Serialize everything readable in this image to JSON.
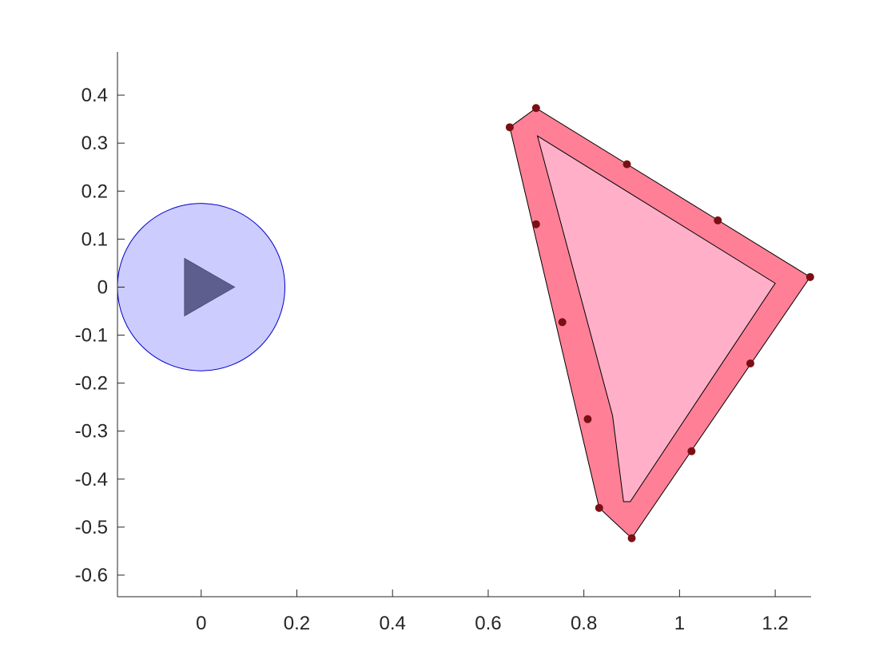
{
  "chart_data": {
    "type": "scatter",
    "title": "",
    "xlabel": "",
    "ylabel": "",
    "xlim": [
      -0.175,
      1.275
    ],
    "ylim": [
      -0.645,
      0.49
    ],
    "grid": false,
    "xticks": [
      0,
      0.2,
      0.4,
      0.6,
      0.8,
      1,
      1.2
    ],
    "xtick_labels": [
      "0",
      "0.2",
      "0.4",
      "0.6",
      "0.8",
      "1",
      "1.2"
    ],
    "yticks": [
      0.4,
      0.3,
      0.2,
      0.1,
      0,
      -0.1,
      -0.2,
      -0.3,
      -0.4,
      -0.5,
      -0.6
    ],
    "ytick_labels": [
      "0.4",
      "0.3",
      "0.2",
      "0.1",
      "0",
      "-0.1",
      "-0.2",
      "-0.3",
      "-0.4",
      "-0.5",
      "-0.6"
    ],
    "circle": {
      "center": [
        0,
        0
      ],
      "radius": 0.175,
      "fill": "#ccccff",
      "stroke": "#0000cc"
    },
    "robot_triangle": {
      "points": [
        [
          -0.035,
          0.06
        ],
        [
          0.07,
          0.0
        ],
        [
          -0.035,
          -0.06
        ]
      ],
      "fill": "#5e5e8e"
    },
    "outer_polygon": {
      "points": [
        [
          0.645,
          0.333
        ],
        [
          0.7,
          0.373
        ],
        [
          1.273,
          0.021
        ],
        [
          0.9,
          -0.523
        ],
        [
          0.832,
          -0.46
        ]
      ],
      "fill": "#ff8096"
    },
    "inner_polygon": {
      "points": [
        [
          0.703,
          0.315
        ],
        [
          1.2,
          0.008
        ],
        [
          0.897,
          -0.447
        ],
        [
          0.883,
          -0.447
        ],
        [
          0.86,
          -0.268
        ]
      ],
      "fill": "#ffb0c8"
    },
    "points": {
      "color": "#7a1015",
      "x": [
        0.645,
        0.7,
        0.89,
        1.08,
        1.273,
        0.7,
        0.755,
        1.148,
        0.808,
        1.025,
        0.832,
        0.9
      ],
      "y": [
        0.333,
        0.373,
        0.256,
        0.139,
        0.021,
        0.131,
        -0.073,
        -0.159,
        -0.275,
        -0.342,
        -0.46,
        -0.523
      ]
    }
  }
}
